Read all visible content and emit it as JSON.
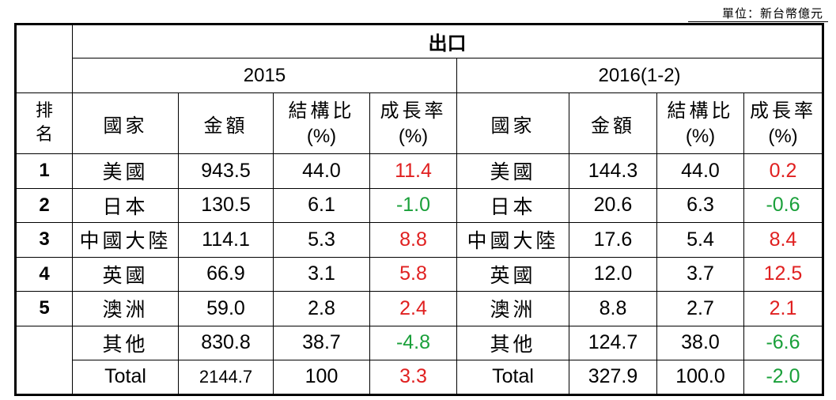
{
  "unit_label": "單位：新台幣億元",
  "header": {
    "export": "出口",
    "period_2015": "2015",
    "period_2016": "2016(1-2)",
    "rank_line1": "排",
    "rank_line2": "名",
    "country": "國家",
    "amount": "金額",
    "share_line1": "結構比",
    "share_line2": "(%)",
    "growth_line1": "成長率",
    "growth_line2": "(%)"
  },
  "rows": [
    {
      "rank": "1",
      "c2015": "美國",
      "a2015": "943.5",
      "s2015": "44.0",
      "g2015": "11.4",
      "g2015_color": "red",
      "c2016": "美國",
      "a2016": "144.3",
      "s2016": "44.0",
      "g2016": "0.2",
      "g2016_color": "red"
    },
    {
      "rank": "2",
      "c2015": "日本",
      "a2015": "130.5",
      "s2015": "6.1",
      "g2015": "-1.0",
      "g2015_color": "green",
      "c2016": "日本",
      "a2016": "20.6",
      "s2016": "6.3",
      "g2016": "-0.6",
      "g2016_color": "green"
    },
    {
      "rank": "3",
      "c2015": "中國大陸",
      "a2015": "114.1",
      "s2015": "5.3",
      "g2015": "8.8",
      "g2015_color": "red",
      "c2016": "中國大陸",
      "a2016": "17.6",
      "s2016": "5.4",
      "g2016": "8.4",
      "g2016_color": "red"
    },
    {
      "rank": "4",
      "c2015": "英國",
      "a2015": "66.9",
      "s2015": "3.1",
      "g2015": "5.8",
      "g2015_color": "red",
      "c2016": "英國",
      "a2016": "12.0",
      "s2016": "3.7",
      "g2016": "12.5",
      "g2016_color": "red"
    },
    {
      "rank": "5",
      "c2015": "澳洲",
      "a2015": "59.0",
      "s2015": "2.8",
      "g2015": "2.4",
      "g2015_color": "red",
      "c2016": "澳洲",
      "a2016": "8.8",
      "s2016": "2.7",
      "g2016": "2.1",
      "g2016_color": "red"
    },
    {
      "rank": "",
      "c2015": "其他",
      "a2015": "830.8",
      "s2015": "38.7",
      "g2015": "-4.8",
      "g2015_color": "green",
      "c2016": "其他",
      "a2016": "124.7",
      "s2016": "38.0",
      "g2016": "-6.6",
      "g2016_color": "green"
    },
    {
      "rank": "",
      "c2015": "Total",
      "a2015": "2144.7",
      "s2015": "100",
      "g2015": "3.3",
      "g2015_color": "red",
      "c2016": "Total",
      "a2016": "327.9",
      "s2016": "100.0",
      "g2016": "-2.0",
      "g2016_color": "green"
    }
  ],
  "colors": {
    "red": "#e02020",
    "green": "#1aa03a"
  }
}
